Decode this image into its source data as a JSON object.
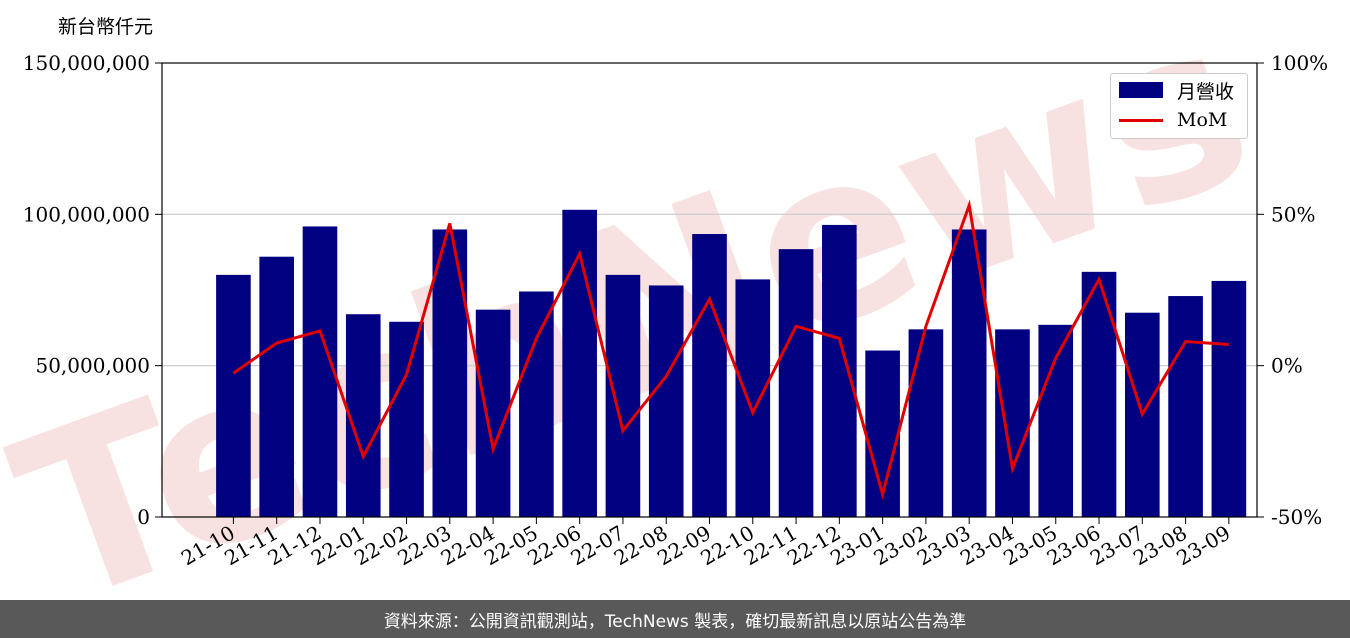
{
  "unit_label": "新台幣仟元",
  "footer_text": "資料來源：公開資訊觀測站，TechNews 製表，確切最新訊息以原站公告為準",
  "watermark_text": "TechNews",
  "colors": {
    "bar": "#000080",
    "line": "#e00000",
    "grid": "#d0d0d0",
    "footer_bg": "#595959",
    "watermark": "#f2c9c9"
  },
  "legend": {
    "bar_label": "月營收",
    "line_label": "MoM",
    "placement": "top-right"
  },
  "chart_data": {
    "type": "bar",
    "categories": [
      "21-10",
      "21-11",
      "21-12",
      "22-01",
      "22-02",
      "22-03",
      "22-04",
      "22-05",
      "22-06",
      "22-07",
      "22-08",
      "22-09",
      "22-10",
      "22-11",
      "22-12",
      "23-01",
      "23-02",
      "23-03",
      "23-04",
      "23-05",
      "23-06",
      "23-07",
      "23-08",
      "23-09"
    ],
    "series": [
      {
        "name": "月營收",
        "type": "bar",
        "axis": "left",
        "values": [
          80000000,
          86000000,
          96000000,
          67000000,
          64500000,
          95000000,
          68500000,
          74500000,
          101500000,
          80000000,
          76500000,
          93500000,
          78500000,
          88500000,
          96500000,
          55000000,
          62000000,
          95000000,
          62000000,
          63500000,
          81000000,
          67500000,
          73000000,
          78000000
        ]
      },
      {
        "name": "MoM",
        "type": "line",
        "axis": "right",
        "values": [
          -2.5,
          7.5,
          11.5,
          -30,
          -3,
          47,
          -27.5,
          9,
          37,
          -21.5,
          -3.5,
          22,
          -15.5,
          13,
          9,
          -42.5,
          13,
          53,
          -34,
          2.5,
          28.5,
          -16,
          8,
          7
        ]
      }
    ],
    "ylim_left": [
      0,
      150000000
    ],
    "ylim_right": [
      -50,
      100
    ],
    "yticks_left": [
      "0",
      "50,000,000",
      "100,000,000",
      "150,000,000"
    ],
    "yticks_right": [
      "-50%",
      "0%",
      "50%",
      "100%"
    ],
    "grid": "horizontal"
  }
}
